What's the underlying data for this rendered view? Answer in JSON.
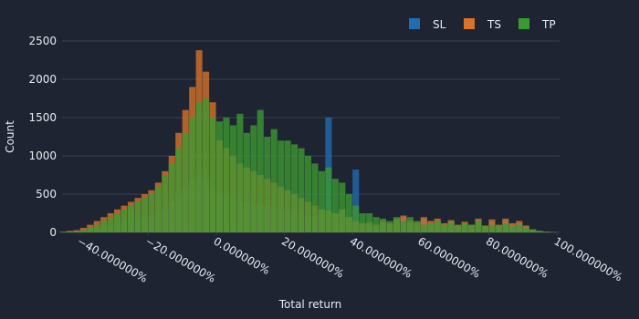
{
  "chart_data": {
    "type": "histogram",
    "x_label": "Total return",
    "y_label": "Count",
    "xlim": [
      -45.3,
      100.8
    ],
    "ylim": [
      0,
      2560
    ],
    "xticks": [
      {
        "value": -40,
        "label": "−40.000000%"
      },
      {
        "value": -20,
        "label": "−20.000000%"
      },
      {
        "value": 0,
        "label": "0.000000%"
      },
      {
        "value": 20,
        "label": "20.000000%"
      },
      {
        "value": 40,
        "label": "40.000000%"
      },
      {
        "value": 60,
        "label": "60.000000%"
      },
      {
        "value": 80,
        "label": "80.000000%"
      },
      {
        "value": 100,
        "label": "100.000000%"
      }
    ],
    "yticks": [
      0,
      500,
      1000,
      1500,
      2000,
      2500
    ],
    "grid": true,
    "legend": "top-right",
    "bins": [
      -46,
      -44,
      -42,
      -40,
      -38,
      -36,
      -34,
      -32,
      -30,
      -28,
      -26,
      -24,
      -22,
      -20,
      -18,
      -16,
      -14,
      -12,
      -10,
      -8,
      -6,
      -4,
      -2,
      0,
      2,
      4,
      6,
      8,
      10,
      12,
      14,
      16,
      18,
      20,
      22,
      24,
      26,
      28,
      30,
      32,
      34,
      36,
      38,
      40,
      42,
      44,
      46,
      48,
      50,
      52,
      54,
      56,
      58,
      60,
      62,
      64,
      66,
      68,
      70,
      72,
      74,
      76,
      78,
      80,
      82,
      84,
      86,
      88,
      90,
      92,
      94,
      96,
      98,
      100
    ],
    "series": [
      {
        "name": "SL",
        "color": "#1f6fb0",
        "values": [
          5,
          10,
          15,
          25,
          40,
          60,
          80,
          100,
          120,
          150,
          280,
          180,
          200,
          220,
          250,
          300,
          400,
          500,
          600,
          700,
          750,
          700,
          600,
          500,
          480,
          450,
          420,
          400,
          380,
          360,
          340,
          320,
          300,
          280,
          260,
          240,
          220,
          200,
          300,
          1500,
          250,
          300,
          200,
          820,
          100,
          110,
          90,
          130,
          100,
          150,
          200,
          120,
          100,
          180,
          120,
          150,
          100,
          140,
          80,
          120,
          90,
          160,
          70,
          140,
          80,
          160,
          100,
          120,
          70,
          30,
          15,
          8,
          4
        ]
      },
      {
        "name": "TS",
        "color": "#d8742a",
        "values": [
          10,
          20,
          30,
          60,
          100,
          150,
          200,
          250,
          300,
          350,
          400,
          450,
          500,
          550,
          650,
          800,
          1000,
          1300,
          1600,
          1900,
          2380,
          2100,
          1700,
          1200,
          1100,
          1000,
          900,
          850,
          800,
          750,
          700,
          650,
          600,
          550,
          500,
          450,
          400,
          350,
          300,
          280,
          250,
          300,
          200,
          150,
          120,
          130,
          100,
          150,
          120,
          180,
          220,
          150,
          130,
          200,
          150,
          180,
          120,
          160,
          100,
          140,
          100,
          180,
          90,
          170,
          100,
          180,
          120,
          150,
          90,
          40,
          20,
          10,
          5
        ]
      },
      {
        "name": "TP",
        "color": "#3d9a32",
        "values": [
          5,
          10,
          15,
          30,
          60,
          100,
          150,
          200,
          250,
          300,
          350,
          400,
          450,
          500,
          600,
          750,
          900,
          1100,
          1300,
          1500,
          1700,
          1750,
          1500,
          1450,
          1500,
          1400,
          1550,
          1300,
          1400,
          1600,
          1250,
          1350,
          1200,
          1200,
          1150,
          1100,
          1000,
          900,
          800,
          850,
          700,
          650,
          500,
          350,
          250,
          250,
          200,
          180,
          150,
          200,
          150,
          200,
          150,
          100,
          120,
          150,
          100,
          130,
          90,
          120,
          100,
          150,
          80,
          100,
          90,
          120,
          80,
          100,
          60,
          40,
          20,
          10,
          5
        ]
      }
    ]
  }
}
